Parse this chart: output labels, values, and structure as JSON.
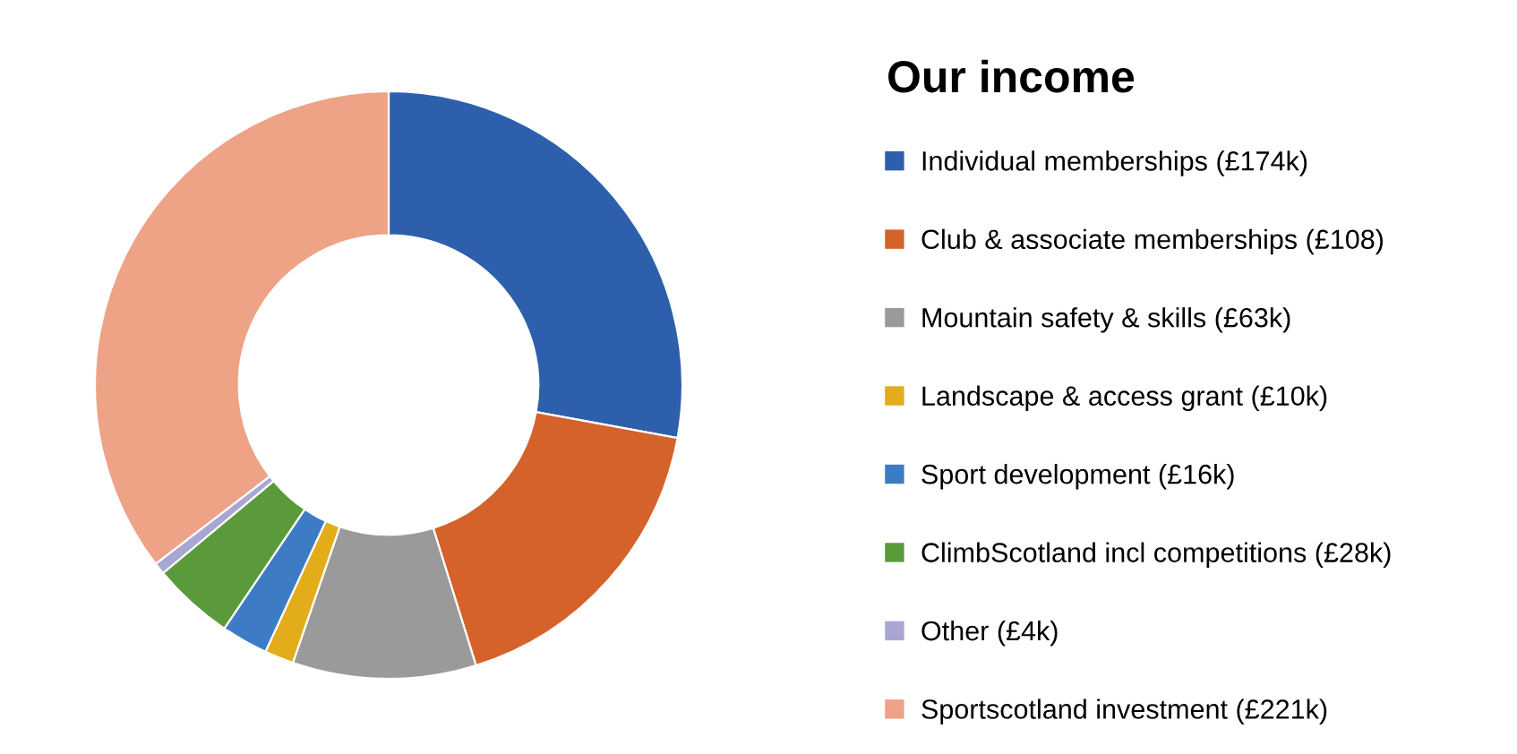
{
  "chart_data": {
    "type": "donut",
    "title": "Our income",
    "categories": [
      "Individual memberships (£174k)",
      "Club & associate memberships (£108)",
      "Mountain safety & skills (£63k)",
      "Landscape & access grant (£10k)",
      "Sport development (£16k)",
      "ClimbScotland incl competitions (£28k)",
      "Other (£4k)",
      "Sportscotland investment (£221k)"
    ],
    "values": [
      174,
      108,
      63,
      10,
      16,
      28,
      4,
      221
    ],
    "colors": [
      "#2e5fac",
      "#d4622a",
      "#9a9a9a",
      "#e3ac1a",
      "#3d7cc4",
      "#5a9a3a",
      "#a9a6d4",
      "#eea286"
    ],
    "legend": "right"
  }
}
